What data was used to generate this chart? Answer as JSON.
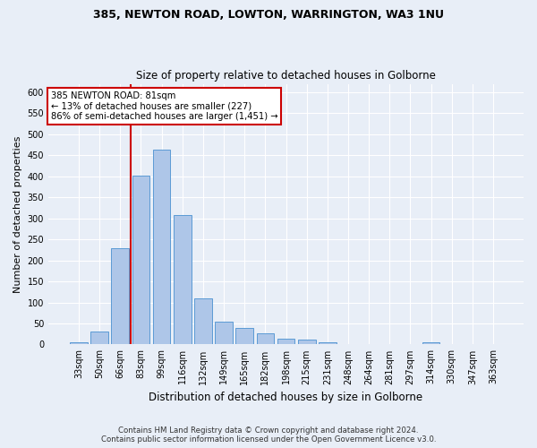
{
  "title1": "385, NEWTON ROAD, LOWTON, WARRINGTON, WA3 1NU",
  "title2": "Size of property relative to detached houses in Golborne",
  "xlabel": "Distribution of detached houses by size in Golborne",
  "ylabel": "Number of detached properties",
  "bar_labels": [
    "33sqm",
    "50sqm",
    "66sqm",
    "83sqm",
    "99sqm",
    "116sqm",
    "132sqm",
    "149sqm",
    "165sqm",
    "182sqm",
    "198sqm",
    "215sqm",
    "231sqm",
    "248sqm",
    "264sqm",
    "281sqm",
    "297sqm",
    "314sqm",
    "330sqm",
    "347sqm",
    "363sqm"
  ],
  "bar_values": [
    5,
    30,
    228,
    402,
    463,
    307,
    110,
    54,
    40,
    26,
    13,
    11,
    5,
    0,
    0,
    0,
    0,
    5,
    0,
    0,
    0
  ],
  "bar_color": "#aec6e8",
  "bar_edge_color": "#5b9bd5",
  "annotation_line0": "385 NEWTON ROAD: 81sqm",
  "annotation_line1": "← 13% of detached houses are smaller (227)",
  "annotation_line2": "86% of semi-detached houses are larger (1,451) →",
  "annotation_box_color": "#ffffff",
  "annotation_box_edge_color": "#cc0000",
  "vline_color": "#cc0000",
  "vline_x_index": 2.5,
  "ylim": [
    0,
    620
  ],
  "yticks": [
    0,
    50,
    100,
    150,
    200,
    250,
    300,
    350,
    400,
    450,
    500,
    550,
    600
  ],
  "footer1": "Contains HM Land Registry data © Crown copyright and database right 2024.",
  "footer2": "Contains public sector information licensed under the Open Government Licence v3.0.",
  "bg_color": "#e8eef7",
  "plot_bg_color": "#e8eef7"
}
